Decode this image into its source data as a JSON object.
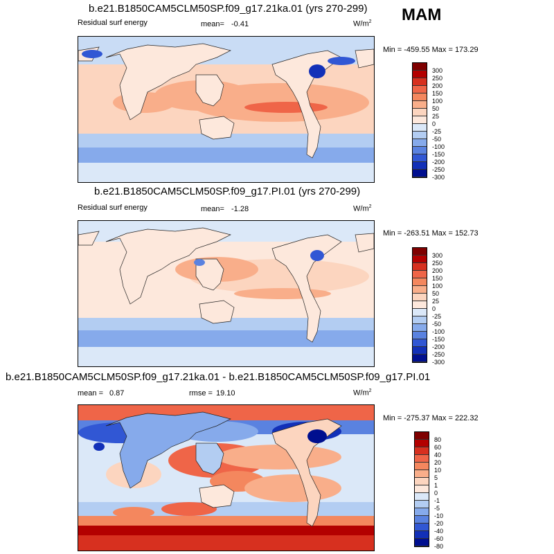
{
  "season": "MAM",
  "units_main": "W/m",
  "units_sup": "2",
  "panels": [
    {
      "title": "b.e21.B1850CAM5CLM50SP.f09_g17.21ka.01 (yrs 270-299)",
      "left_label": "Residual surf energy",
      "mean_label": "mean=",
      "mean_value": "-0.41",
      "minmax": "Min = -459.55 Max = 173.29",
      "levels": [
        "300",
        "250",
        "200",
        "150",
        "100",
        "50",
        "25",
        "0",
        "-25",
        "-50",
        "-100",
        "-150",
        "-200",
        "-250",
        "-300"
      ]
    },
    {
      "title": "b.e21.B1850CAM5CLM50SP.f09_g17.PI.01 (yrs 270-299)",
      "left_label": "Residual surf energy",
      "mean_label": "mean=",
      "mean_value": "-1.28",
      "minmax": "Min = -263.51 Max = 152.73",
      "levels": [
        "300",
        "250",
        "200",
        "150",
        "100",
        "50",
        "25",
        "0",
        "-25",
        "-50",
        "-100",
        "-150",
        "-200",
        "-250",
        "-300"
      ]
    },
    {
      "title": "b.e21.B1850CAM5CLM50SP.f09_g17.21ka.01 - b.e21.B1850CAM5CLM50SP.f09_g17.PI.01",
      "left_label": "mean =",
      "mean_value": "0.87",
      "rmse_label": "rmse =",
      "rmse_value": "19.10",
      "minmax": "Min = -275.37 Max = 222.32",
      "levels": [
        "80",
        "60",
        "40",
        "20",
        "10",
        "5",
        "1",
        "0",
        "-1",
        "-5",
        "-10",
        "-20",
        "-40",
        "-60",
        "-80"
      ]
    }
  ],
  "colorbar_colors": [
    "#7f0000",
    "#b30000",
    "#d7301f",
    "#ef6548",
    "#f4875e",
    "#f9ae8a",
    "#fcd5bf",
    "#fde8dc",
    "#dbe8f8",
    "#b3cdf2",
    "#86aaeb",
    "#5a82e0",
    "#3157d4",
    "#1230b8",
    "#000f8f"
  ]
}
